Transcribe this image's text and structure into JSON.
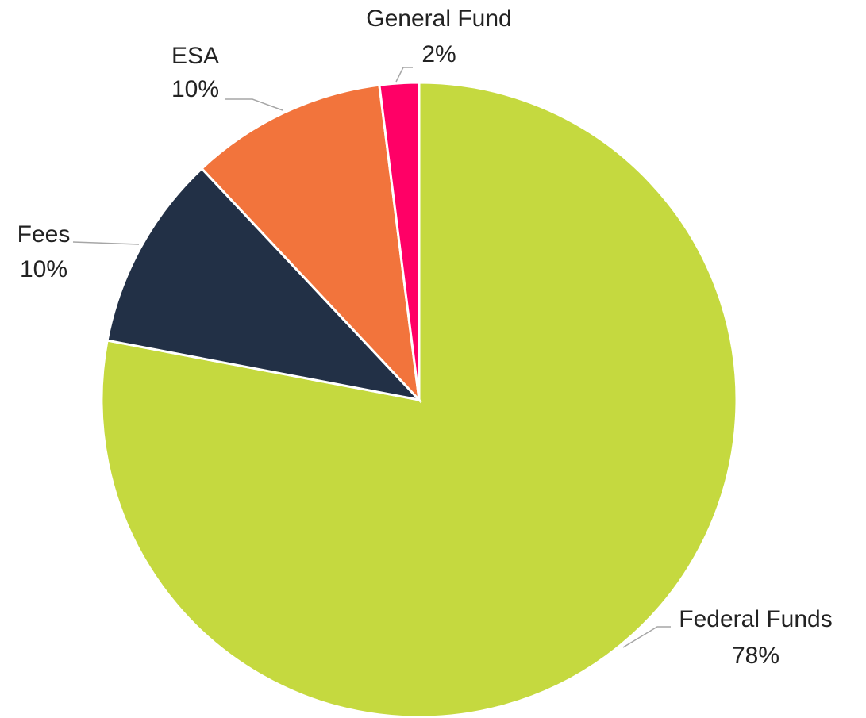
{
  "chart_data": {
    "type": "pie",
    "categories": [
      "Federal Funds",
      "Fees",
      "ESA",
      "General Fund"
    ],
    "values": [
      78,
      10,
      10,
      2
    ],
    "value_labels": [
      "78%",
      "10%",
      "10%",
      "2%"
    ],
    "colors": [
      "#c5d93f",
      "#223046",
      "#f2743c",
      "#ff0066"
    ]
  }
}
